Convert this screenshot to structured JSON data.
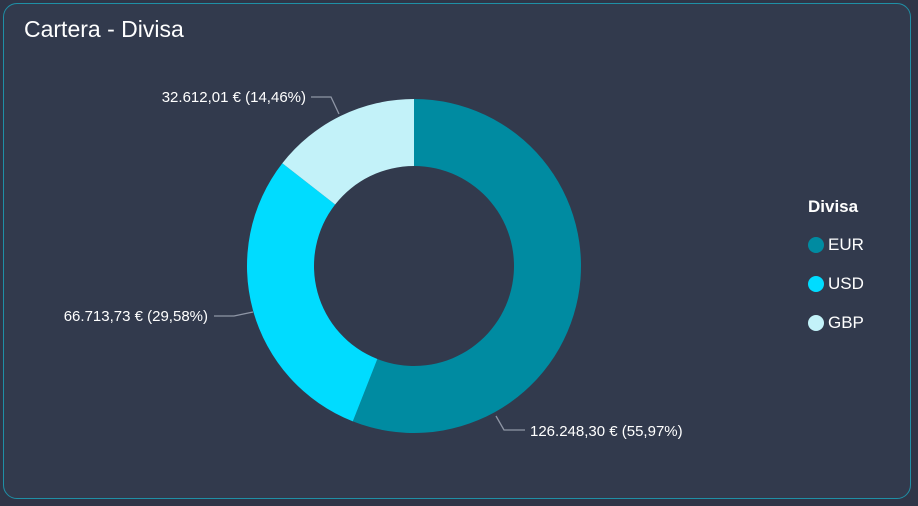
{
  "card": {
    "title": "Cartera - Divisa"
  },
  "chart_data": {
    "type": "pie",
    "variant": "donut",
    "title": "Cartera - Divisa",
    "legend": {
      "title": "Divisa",
      "position": "right"
    },
    "slices": [
      {
        "label": "EUR",
        "value": 126248.3,
        "percent": 55.97,
        "data_label": "126.248,30 € (55,97%)",
        "color": "#008ba1"
      },
      {
        "label": "USD",
        "value": 66713.73,
        "percent": 29.58,
        "data_label": "66.713,73 € (29,58%)",
        "color": "#00dcff"
      },
      {
        "label": "GBP",
        "value": 32612.01,
        "percent": 14.46,
        "data_label": "32.612,01 € (14,46%)",
        "color": "#c3f2f9"
      }
    ]
  },
  "colors": {
    "background": "#2f3547",
    "card_background": "#323a4d",
    "card_border": "#1f8fa6",
    "text": "#ffffff",
    "leader_line": "#8f96a6"
  }
}
